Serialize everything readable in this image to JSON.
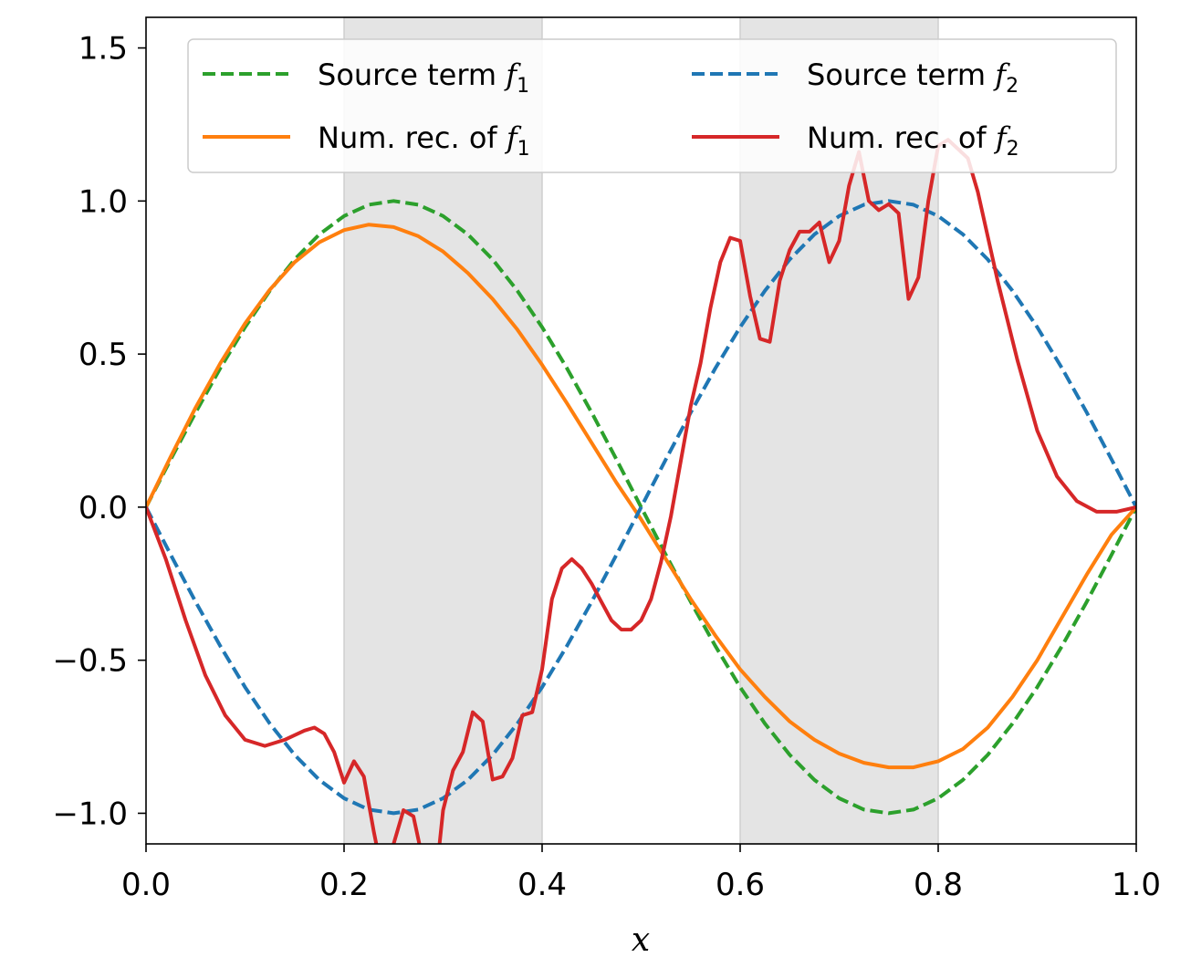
{
  "chart_data": {
    "type": "line",
    "xlabel": "x",
    "ylabel": "",
    "title": "",
    "xlim": [
      0.0,
      1.0
    ],
    "ylim": [
      -1.1,
      1.6
    ],
    "xticks": [
      "0.0",
      "0.2",
      "0.4",
      "0.6",
      "0.8",
      "1.0"
    ],
    "xtick_values": [
      0.0,
      0.2,
      0.4,
      0.6,
      0.8,
      1.0
    ],
    "yticks": [
      "−1.0",
      "−0.5",
      "0.0",
      "0.5",
      "1.0",
      "1.5"
    ],
    "ytick_values": [
      -1.0,
      -0.5,
      0.0,
      0.5,
      1.0,
      1.5
    ],
    "grid": false,
    "legend_position": "top-right",
    "shaded_intervals": [
      [
        0.2,
        0.4
      ],
      [
        0.6,
        0.8
      ]
    ],
    "shade_color": "#e4e4e4",
    "legend": [
      {
        "series": 0,
        "prefix": "Source term ",
        "symbol": "f",
        "sub": "1"
      },
      {
        "series": 2,
        "prefix": "Source term ",
        "symbol": "f",
        "sub": "2"
      },
      {
        "series": 1,
        "prefix": "Num. rec. of ",
        "symbol": "f",
        "sub": "1"
      },
      {
        "series": 3,
        "prefix": "Num. rec. of ",
        "symbol": "f",
        "sub": "2"
      }
    ],
    "series": [
      {
        "name": "Source term f1",
        "color": "#2ca02c",
        "dashed": true,
        "x": [
          0.0,
          0.025,
          0.05,
          0.075,
          0.1,
          0.125,
          0.15,
          0.175,
          0.2,
          0.225,
          0.25,
          0.275,
          0.3,
          0.325,
          0.35,
          0.375,
          0.4,
          0.425,
          0.45,
          0.475,
          0.5,
          0.525,
          0.55,
          0.575,
          0.6,
          0.625,
          0.65,
          0.675,
          0.7,
          0.725,
          0.75,
          0.775,
          0.8,
          0.825,
          0.85,
          0.875,
          0.9,
          0.925,
          0.95,
          0.975,
          1.0
        ],
        "y": [
          0.0,
          0.156,
          0.309,
          0.454,
          0.588,
          0.707,
          0.809,
          0.891,
          0.951,
          0.988,
          1.0,
          0.988,
          0.951,
          0.891,
          0.809,
          0.707,
          0.588,
          0.454,
          0.309,
          0.156,
          0.0,
          -0.156,
          -0.309,
          -0.454,
          -0.588,
          -0.707,
          -0.809,
          -0.891,
          -0.951,
          -0.988,
          -1.0,
          -0.988,
          -0.951,
          -0.891,
          -0.809,
          -0.707,
          -0.588,
          -0.454,
          -0.309,
          -0.156,
          0.0
        ]
      },
      {
        "name": "Num. rec. of f1",
        "color": "#ff7f0e",
        "dashed": false,
        "x": [
          0.0,
          0.025,
          0.05,
          0.075,
          0.1,
          0.125,
          0.15,
          0.175,
          0.2,
          0.225,
          0.25,
          0.275,
          0.3,
          0.325,
          0.35,
          0.375,
          0.4,
          0.425,
          0.45,
          0.475,
          0.5,
          0.525,
          0.55,
          0.575,
          0.6,
          0.625,
          0.65,
          0.675,
          0.7,
          0.725,
          0.75,
          0.775,
          0.8,
          0.825,
          0.85,
          0.875,
          0.9,
          0.925,
          0.95,
          0.975,
          1.0
        ],
        "y": [
          0.0,
          0.165,
          0.325,
          0.47,
          0.6,
          0.71,
          0.8,
          0.865,
          0.905,
          0.923,
          0.915,
          0.885,
          0.835,
          0.765,
          0.68,
          0.58,
          0.465,
          0.34,
          0.21,
          0.08,
          -0.04,
          -0.17,
          -0.3,
          -0.42,
          -0.53,
          -0.62,
          -0.7,
          -0.76,
          -0.805,
          -0.835,
          -0.85,
          -0.85,
          -0.83,
          -0.79,
          -0.72,
          -0.62,
          -0.5,
          -0.36,
          -0.22,
          -0.09,
          0.0
        ]
      },
      {
        "name": "Source term f2",
        "color": "#1f77b4",
        "dashed": true,
        "x": [
          0.0,
          0.025,
          0.05,
          0.075,
          0.1,
          0.125,
          0.15,
          0.175,
          0.2,
          0.225,
          0.25,
          0.275,
          0.3,
          0.325,
          0.35,
          0.375,
          0.4,
          0.425,
          0.45,
          0.475,
          0.5,
          0.525,
          0.55,
          0.575,
          0.6,
          0.625,
          0.65,
          0.675,
          0.7,
          0.725,
          0.75,
          0.775,
          0.8,
          0.825,
          0.85,
          0.875,
          0.9,
          0.925,
          0.95,
          0.975,
          1.0
        ],
        "y": [
          0.0,
          -0.156,
          -0.309,
          -0.454,
          -0.588,
          -0.707,
          -0.809,
          -0.891,
          -0.951,
          -0.988,
          -1.0,
          -0.988,
          -0.951,
          -0.891,
          -0.809,
          -0.707,
          -0.588,
          -0.454,
          -0.309,
          -0.156,
          0.0,
          0.156,
          0.309,
          0.454,
          0.588,
          0.707,
          0.809,
          0.891,
          0.951,
          0.988,
          1.0,
          0.988,
          0.951,
          0.891,
          0.809,
          0.707,
          0.588,
          0.454,
          0.309,
          0.156,
          0.0
        ]
      },
      {
        "name": "Num. rec. of f2",
        "color": "#d62728",
        "dashed": false,
        "x": [
          0.0,
          0.02,
          0.04,
          0.06,
          0.08,
          0.1,
          0.12,
          0.14,
          0.16,
          0.17,
          0.18,
          0.19,
          0.2,
          0.21,
          0.22,
          0.23,
          0.24,
          0.25,
          0.26,
          0.27,
          0.28,
          0.29,
          0.3,
          0.31,
          0.32,
          0.33,
          0.34,
          0.35,
          0.36,
          0.37,
          0.38,
          0.39,
          0.4,
          0.41,
          0.42,
          0.43,
          0.44,
          0.45,
          0.46,
          0.47,
          0.48,
          0.49,
          0.5,
          0.51,
          0.52,
          0.53,
          0.54,
          0.55,
          0.56,
          0.57,
          0.58,
          0.59,
          0.6,
          0.61,
          0.62,
          0.63,
          0.64,
          0.65,
          0.66,
          0.67,
          0.68,
          0.69,
          0.7,
          0.71,
          0.72,
          0.73,
          0.74,
          0.75,
          0.76,
          0.77,
          0.78,
          0.79,
          0.8,
          0.81,
          0.82,
          0.83,
          0.84,
          0.86,
          0.88,
          0.9,
          0.92,
          0.94,
          0.96,
          0.98,
          1.0
        ],
        "y": [
          0.0,
          -0.17,
          -0.37,
          -0.55,
          -0.68,
          -0.76,
          -0.78,
          -0.76,
          -0.73,
          -0.72,
          -0.74,
          -0.8,
          -0.9,
          -0.83,
          -0.88,
          -1.06,
          -1.22,
          -1.1,
          -0.99,
          -1.01,
          -1.16,
          -1.3,
          -0.99,
          -0.86,
          -0.8,
          -0.67,
          -0.7,
          -0.89,
          -0.88,
          -0.82,
          -0.68,
          -0.67,
          -0.53,
          -0.3,
          -0.2,
          -0.17,
          -0.2,
          -0.25,
          -0.31,
          -0.37,
          -0.4,
          -0.4,
          -0.37,
          -0.3,
          -0.18,
          -0.03,
          0.15,
          0.33,
          0.47,
          0.65,
          0.8,
          0.88,
          0.87,
          0.69,
          0.55,
          0.54,
          0.74,
          0.84,
          0.9,
          0.9,
          0.93,
          0.8,
          0.87,
          1.05,
          1.16,
          1.0,
          0.97,
          0.99,
          0.96,
          0.68,
          0.75,
          1.0,
          1.18,
          1.2,
          1.17,
          1.14,
          1.03,
          0.74,
          0.48,
          0.25,
          0.1,
          0.02,
          -0.015,
          -0.015,
          0.0
        ]
      }
    ]
  }
}
